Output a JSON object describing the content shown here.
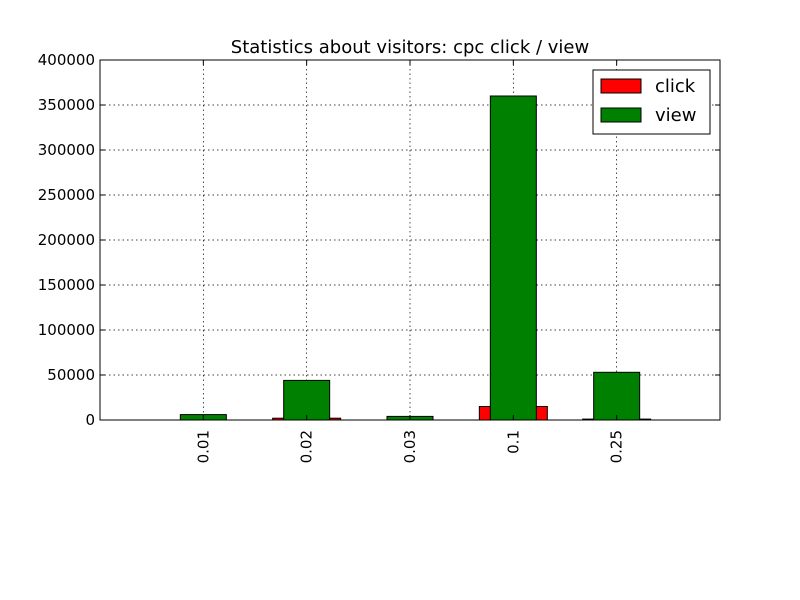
{
  "chart_data": {
    "type": "bar",
    "title": "Statistics about visitors: cpc click / view",
    "categories": [
      "0.01",
      "0.02",
      "0.03",
      "0.1",
      "0.25"
    ],
    "series": [
      {
        "name": "click",
        "color": "#ff0000",
        "values": [
          0,
          2000,
          0,
          15000,
          1000
        ]
      },
      {
        "name": "view",
        "color": "#008000",
        "values": [
          6000,
          44000,
          4000,
          360000,
          53000
        ]
      }
    ],
    "ylim": [
      0,
      400000
    ],
    "yticks": [
      "0",
      "50000",
      "100000",
      "150000",
      "200000",
      "250000",
      "300000",
      "350000",
      "400000"
    ],
    "grid": true,
    "legend_position": "top-right",
    "xtick_rotation": "vertical"
  }
}
